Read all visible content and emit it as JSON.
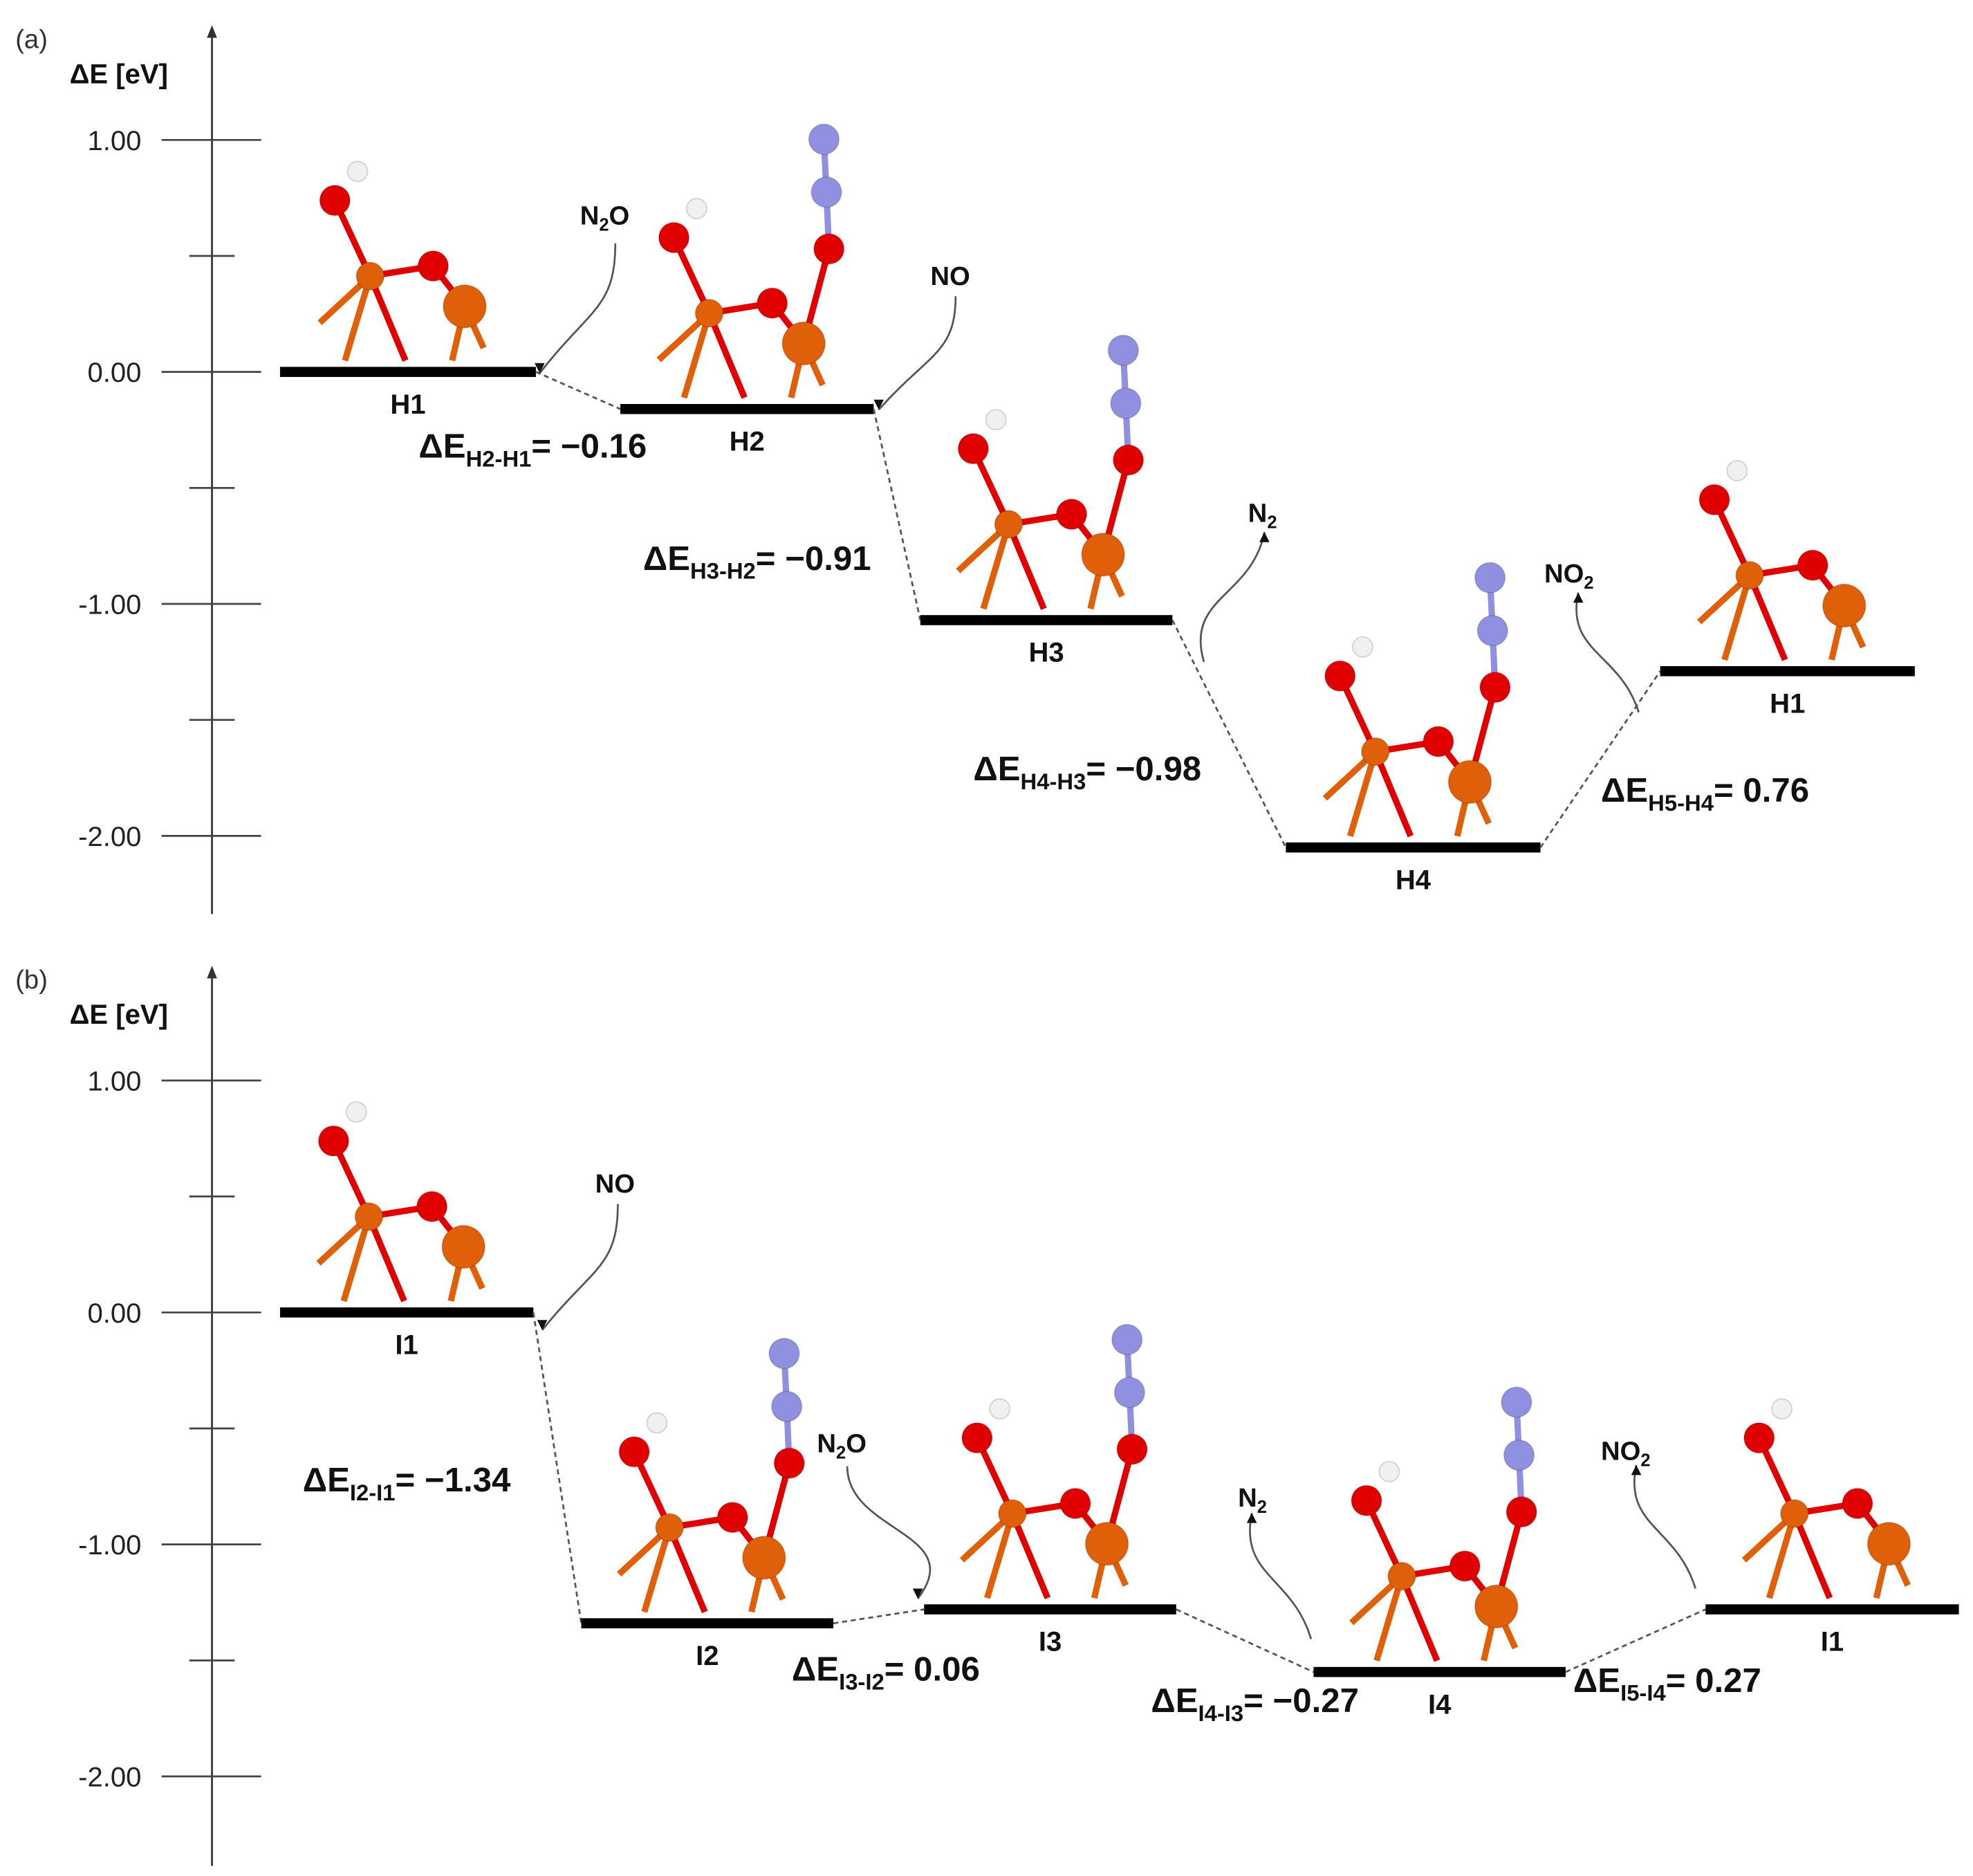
{
  "chart_data": [
    {
      "type": "energy-level diagram",
      "panel_label": "(a)",
      "ylabel": "ΔE [eV]",
      "ylim": [
        -2.35,
        1.45
      ],
      "yticks": [
        "1.00",
        "0.00",
        "-1.00",
        "-2.00"
      ],
      "levels": [
        {
          "label": "H1",
          "energy": 0.0
        },
        {
          "label": "H2",
          "energy": -0.16
        },
        {
          "label": "H3",
          "energy": -1.07
        },
        {
          "label": "H4",
          "energy": -2.05
        },
        {
          "label": "H1",
          "energy": -1.29
        }
      ],
      "steps": [
        {
          "delta": "ΔE",
          "sub": "H2-H1",
          "value": "= −0.16",
          "gas": "N",
          "gas_sub": "2",
          "gas_tail": "O",
          "gas_dir": "in"
        },
        {
          "delta": "ΔE",
          "sub": "H3-H2",
          "value": "= −0.91",
          "gas": "NO",
          "gas_sub": "",
          "gas_tail": "",
          "gas_dir": "in"
        },
        {
          "delta": "ΔE",
          "sub": "H4-H3",
          "value": "= −0.98",
          "gas": "N",
          "gas_sub": "2",
          "gas_tail": "",
          "gas_dir": "out"
        },
        {
          "delta": "ΔE",
          "sub": "H5-H4",
          "value": "= 0.76",
          "gas": "NO",
          "gas_sub": "2",
          "gas_tail": "",
          "gas_dir": "out"
        }
      ]
    },
    {
      "type": "energy-level diagram",
      "panel_label": "(b)",
      "ylabel": "ΔE [eV]",
      "ylim": [
        -2.35,
        1.45
      ],
      "yticks": [
        "1.00",
        "0.00",
        "-1.00",
        "-2.00"
      ],
      "levels": [
        {
          "label": "I1",
          "energy": 0.0
        },
        {
          "label": "I2",
          "energy": -1.34
        },
        {
          "label": "I3",
          "energy": -1.28
        },
        {
          "label": "I4",
          "energy": -1.55
        },
        {
          "label": "I1",
          "energy": -1.28
        }
      ],
      "steps": [
        {
          "delta": "ΔE",
          "sub": "I2-I1",
          "value": "= −1.34",
          "gas": "NO",
          "gas_sub": "",
          "gas_tail": "",
          "gas_dir": "in"
        },
        {
          "delta": "ΔE",
          "sub": "I3-I2",
          "value": "= 0.06",
          "gas": "N",
          "gas_sub": "2",
          "gas_tail": "O",
          "gas_dir": "in"
        },
        {
          "delta": "ΔE",
          "sub": "I4-I3",
          "value": "= −0.27",
          "gas": "N",
          "gas_sub": "2",
          "gas_tail": "",
          "gas_dir": "out"
        },
        {
          "delta": "ΔE",
          "sub": "I5-I4",
          "value": "= 0.27",
          "gas": "NO",
          "gas_sub": "2",
          "gas_tail": "",
          "gas_dir": "out"
        }
      ]
    }
  ],
  "colors": {
    "fe": "#e0600a",
    "o": "#e00000",
    "n": "#9090e0",
    "h": "#f0f0f0",
    "level": "#000000"
  }
}
